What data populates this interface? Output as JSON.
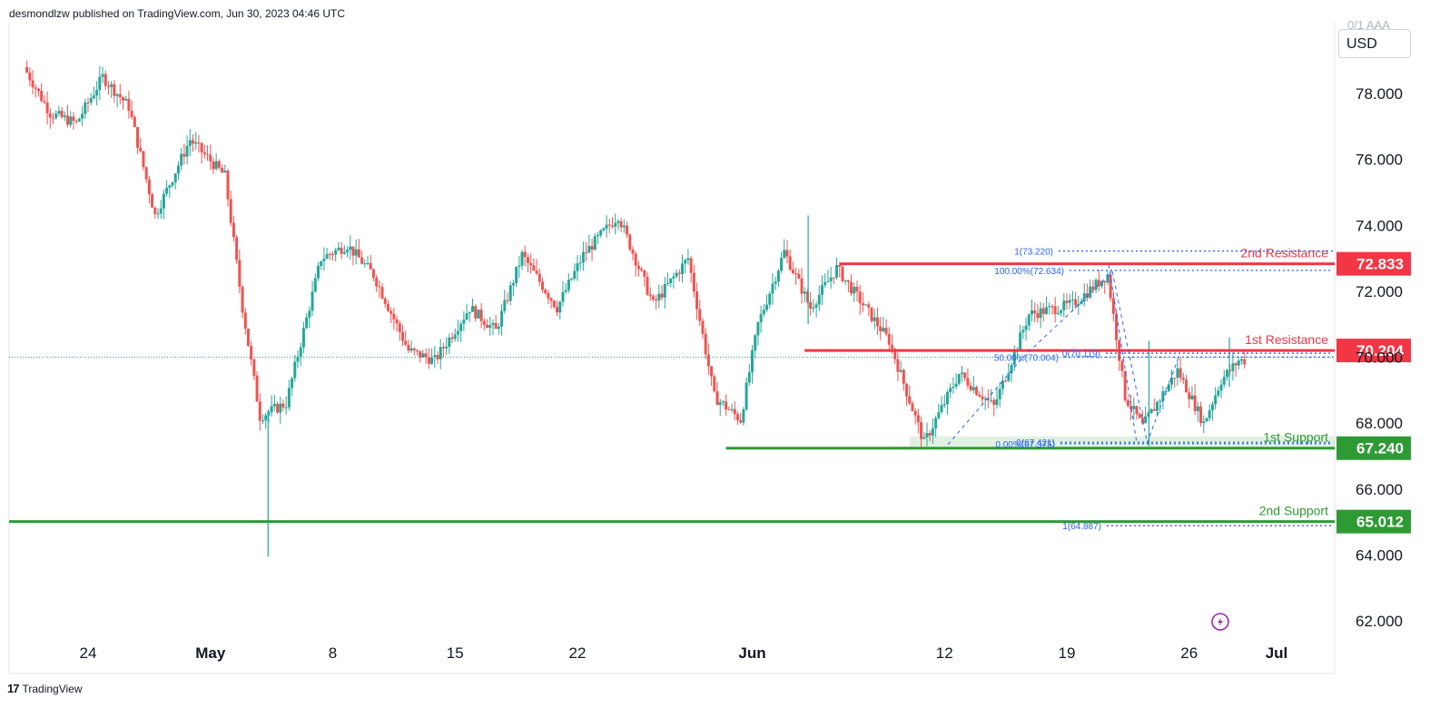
{
  "publisher_text": "desmondlzw published on TradingView.com, Jun 30, 2023 04:46 UTC",
  "brand": {
    "logo": "17",
    "name": "TradingView"
  },
  "currency": "USD",
  "currency_cut_label": "0/1 AAA",
  "colors": {
    "up": "#26a69a",
    "down": "#ef5350",
    "resistance": "#f23645",
    "support": "#2e9a34",
    "fib": "#2962ff",
    "axis_text": "#131722"
  },
  "icons": {
    "replay": "lightning-circle-icon",
    "brand": "tradingview-logo-icon"
  },
  "chart_data": {
    "type": "candlestick",
    "ylim": [
      61.2,
      79.6
    ],
    "y_ticks": [
      "78.000",
      "76.000",
      "74.000",
      "72.000",
      "70.000",
      "68.000",
      "66.000",
      "64.000",
      "62.000"
    ],
    "y_tick_values": [
      78,
      76,
      74,
      72,
      70,
      68,
      66,
      64,
      62
    ],
    "x_ticks": [
      {
        "label": "24",
        "day": 4,
        "bold": false
      },
      {
        "label": "May",
        "day": 11,
        "bold": true
      },
      {
        "label": "8",
        "day": 18,
        "bold": false
      },
      {
        "label": "15",
        "day": 25,
        "bold": false
      },
      {
        "label": "22",
        "day": 32,
        "bold": false
      },
      {
        "label": "Jun",
        "day": 42,
        "bold": true
      },
      {
        "label": "12",
        "day": 53,
        "bold": false
      },
      {
        "label": "19",
        "day": 60,
        "bold": false
      },
      {
        "label": "26",
        "day": 67,
        "bold": false
      },
      {
        "label": "Jul",
        "day": 72,
        "bold": true
      }
    ],
    "current_price_line": 70.0,
    "levels": [
      {
        "name": "2nd Resistance",
        "price": 72.833,
        "label": "72.833",
        "kind": "resistance"
      },
      {
        "name": "1st Resistance",
        "price": 70.204,
        "label": "70.204",
        "kind": "resistance"
      },
      {
        "name": "1st Support",
        "price": 67.24,
        "label": "67.240",
        "kind": "support"
      },
      {
        "name": "2nd Support",
        "price": 65.012,
        "label": "65.012",
        "kind": "support"
      }
    ],
    "support_zone": [
      67.2,
      67.6
    ],
    "fib_labels": [
      {
        "text": "1(73.220)",
        "price": 73.22
      },
      {
        "text": "100.00%(72.634)",
        "price": 72.634
      },
      {
        "text": "0(70.119)",
        "price": 70.119
      },
      {
        "text": "50.00%(70.004)",
        "price": 70.004
      },
      {
        "text": "0(67.421)",
        "price": 67.421
      },
      {
        "text": "0.00%(67.375)",
        "price": 67.375
      },
      {
        "text": "1(64.887)",
        "price": 64.887
      }
    ],
    "anchors": [
      {
        "day": 0.5,
        "price": 78.8
      },
      {
        "day": 2,
        "price": 77.4
      },
      {
        "day": 3.5,
        "price": 77.1
      },
      {
        "day": 5,
        "price": 78.5
      },
      {
        "day": 6.5,
        "price": 77.6
      },
      {
        "day": 8,
        "price": 74.3
      },
      {
        "day": 10,
        "price": 76.6
      },
      {
        "day": 12,
        "price": 75.5
      },
      {
        "day": 13,
        "price": 71.5
      },
      {
        "day": 14,
        "price": 68.2
      },
      {
        "day": 15.5,
        "price": 68.6
      },
      {
        "day": 17.5,
        "price": 73.0
      },
      {
        "day": 19,
        "price": 73.4
      },
      {
        "day": 20.5,
        "price": 72.5
      },
      {
        "day": 22.5,
        "price": 70.2
      },
      {
        "day": 24,
        "price": 69.9
      },
      {
        "day": 26,
        "price": 71.5
      },
      {
        "day": 27.5,
        "price": 70.8
      },
      {
        "day": 29,
        "price": 73.1
      },
      {
        "day": 31,
        "price": 71.5
      },
      {
        "day": 32.5,
        "price": 73.1
      },
      {
        "day": 34.5,
        "price": 74.3
      },
      {
        "day": 36.5,
        "price": 71.6
      },
      {
        "day": 38.5,
        "price": 73.0
      },
      {
        "day": 40,
        "price": 68.8
      },
      {
        "day": 41.5,
        "price": 68.1
      },
      {
        "day": 42.5,
        "price": 71.0
      },
      {
        "day": 44,
        "price": 73.2
      },
      {
        "day": 45.5,
        "price": 71.5
      },
      {
        "day": 47,
        "price": 72.7
      },
      {
        "day": 48.5,
        "price": 71.6
      },
      {
        "day": 50,
        "price": 70.5
      },
      {
        "day": 52,
        "price": 67.4
      },
      {
        "day": 54,
        "price": 69.5
      },
      {
        "day": 56,
        "price": 68.5
      },
      {
        "day": 58,
        "price": 71.3
      },
      {
        "day": 60.5,
        "price": 71.6
      },
      {
        "day": 62.5,
        "price": 72.5
      },
      {
        "day": 63.5,
        "price": 68.8
      },
      {
        "day": 64.5,
        "price": 67.9
      },
      {
        "day": 66.5,
        "price": 69.6
      },
      {
        "day": 68,
        "price": 68.0
      },
      {
        "day": 69,
        "price": 69.3
      },
      {
        "day": 70,
        "price": 69.9
      }
    ],
    "wicks": [
      {
        "day": 14.3,
        "high": 68.4,
        "low": 63.95
      },
      {
        "day": 45.2,
        "high": 74.3,
        "low": 71.0
      },
      {
        "day": 64.7,
        "high": 70.5,
        "low": 67.3
      },
      {
        "day": 69.3,
        "high": 70.6,
        "low": 69.1
      }
    ]
  }
}
